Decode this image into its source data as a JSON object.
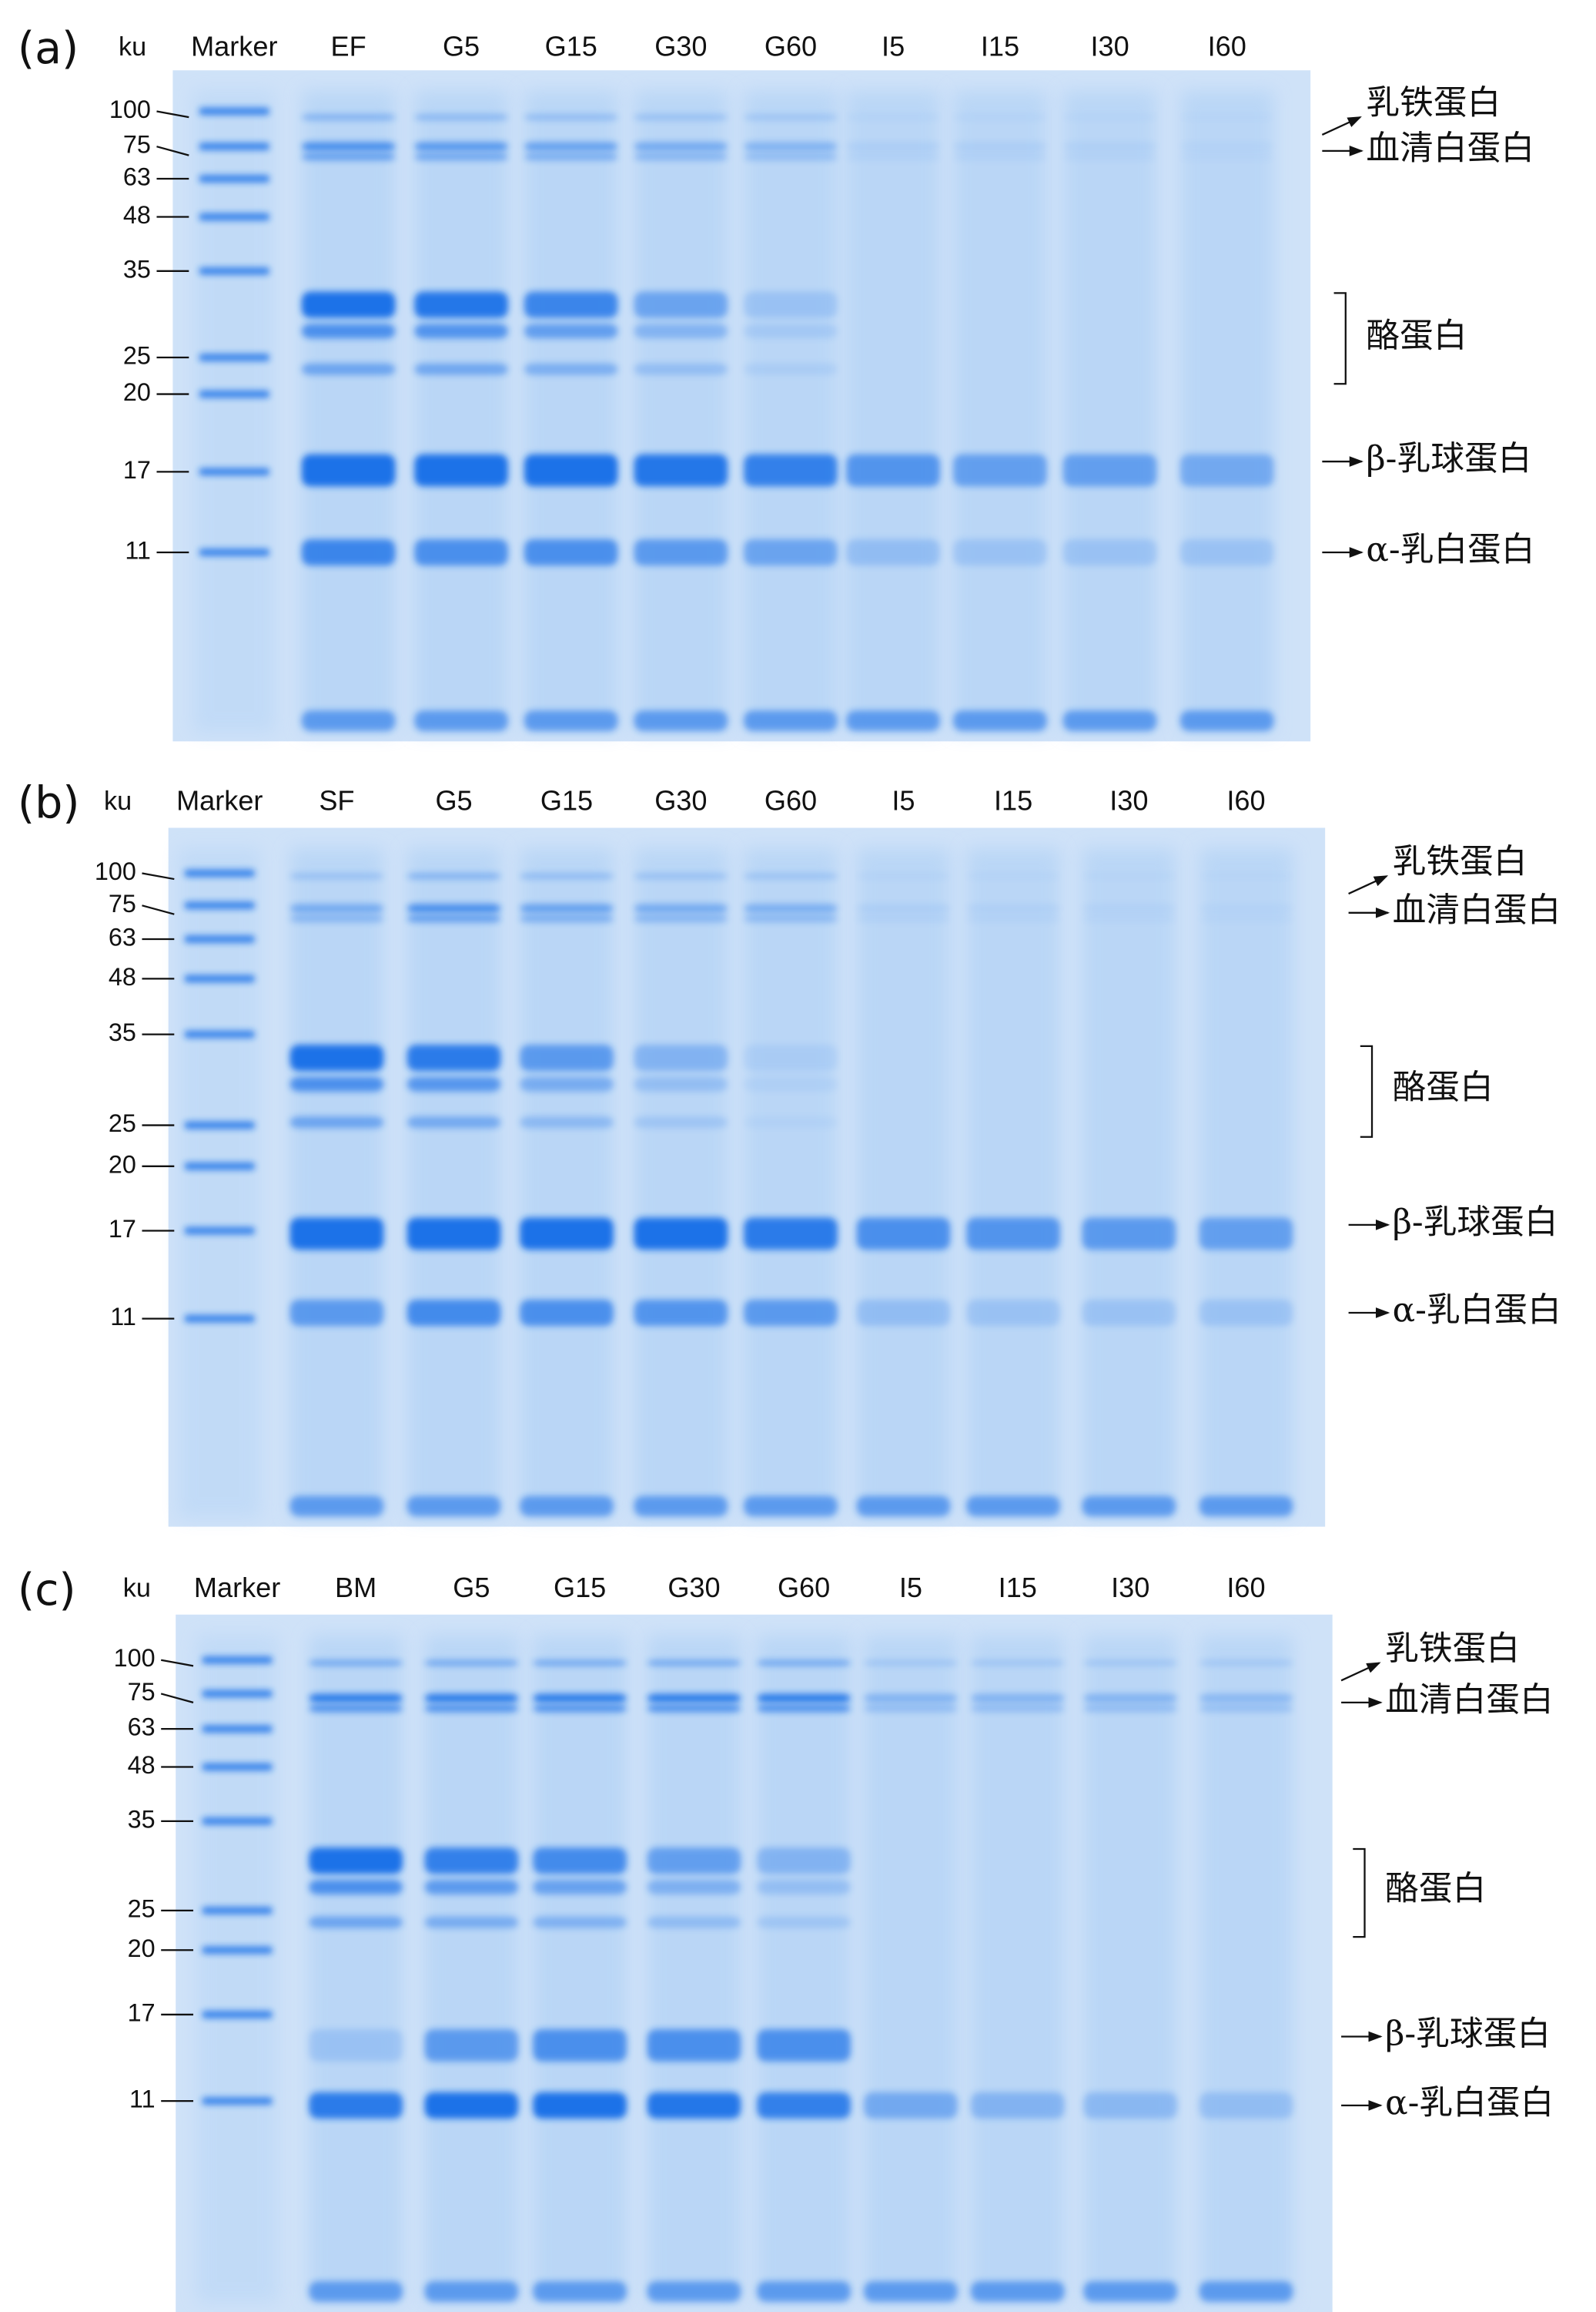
{
  "panels": [
    {
      "label": "(a)",
      "unit": "ku",
      "lanes": [
        "Marker",
        "EF",
        "G5",
        "G15",
        "G30",
        "G60",
        "I5",
        "I15",
        "I30",
        "I60"
      ],
      "markers": [
        100,
        75,
        63,
        48,
        35,
        25,
        20,
        17,
        11
      ],
      "proteins": [
        "乳铁蛋白",
        "血清白蛋白",
        "酪蛋白",
        "β-乳球蛋白",
        "α-乳白蛋白"
      ]
    },
    {
      "label": "(b)",
      "unit": "ku",
      "lanes": [
        "Marker",
        "SF",
        "G5",
        "G15",
        "G30",
        "G60",
        "I5",
        "I15",
        "I30",
        "I60"
      ],
      "markers": [
        100,
        75,
        63,
        48,
        35,
        25,
        20,
        17,
        11
      ],
      "proteins": [
        "乳铁蛋白",
        "血清白蛋白",
        "酪蛋白",
        "β-乳球蛋白",
        "α-乳白蛋白"
      ]
    },
    {
      "label": "(c)",
      "unit": "ku",
      "lanes": [
        "Marker",
        "BM",
        "G5",
        "G15",
        "G30",
        "G60",
        "I5",
        "I15",
        "I30",
        "I60"
      ],
      "markers": [
        100,
        75,
        63,
        48,
        35,
        25,
        20,
        17,
        11
      ],
      "proteins": [
        "乳铁蛋白",
        "血清白蛋白",
        "酪蛋白",
        "β-乳球蛋白",
        "α-乳白蛋白"
      ]
    }
  ]
}
